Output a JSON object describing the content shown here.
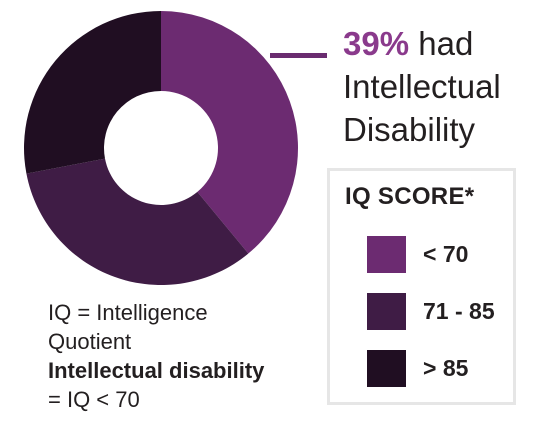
{
  "chart_data": {
    "type": "donut",
    "slices": [
      {
        "label": "< 70",
        "value": 39,
        "color": "#6c2b71"
      },
      {
        "label": "71 - 85",
        "value": 33,
        "color": "#3f1c45"
      },
      {
        "label": "> 85",
        "value": 28,
        "color": "#200e22"
      }
    ],
    "start_angle_deg": 0,
    "direction": "clockwise"
  },
  "headline": {
    "percent": "39%",
    "text_line1": "had",
    "text_line2": "Intellectual",
    "text_line3": "Disability"
  },
  "legend": {
    "title": "IQ SCORE*",
    "items": [
      {
        "label": "< 70",
        "color": "#6c2b71"
      },
      {
        "label": "71 - 85",
        "color": "#3f1c45"
      },
      {
        "label": "> 85",
        "color": "#200e22"
      }
    ]
  },
  "footnote": {
    "line1_abbr": "IQ",
    "line1_rest": " = Intelligence",
    "line2": "Quotient",
    "line3": "Intellectual disability",
    "line4": "= IQ < 70"
  },
  "colors": {
    "accent": "#8a3a8c",
    "callout_line": "#6a2c70",
    "legend_border": "#e6e6e6"
  }
}
